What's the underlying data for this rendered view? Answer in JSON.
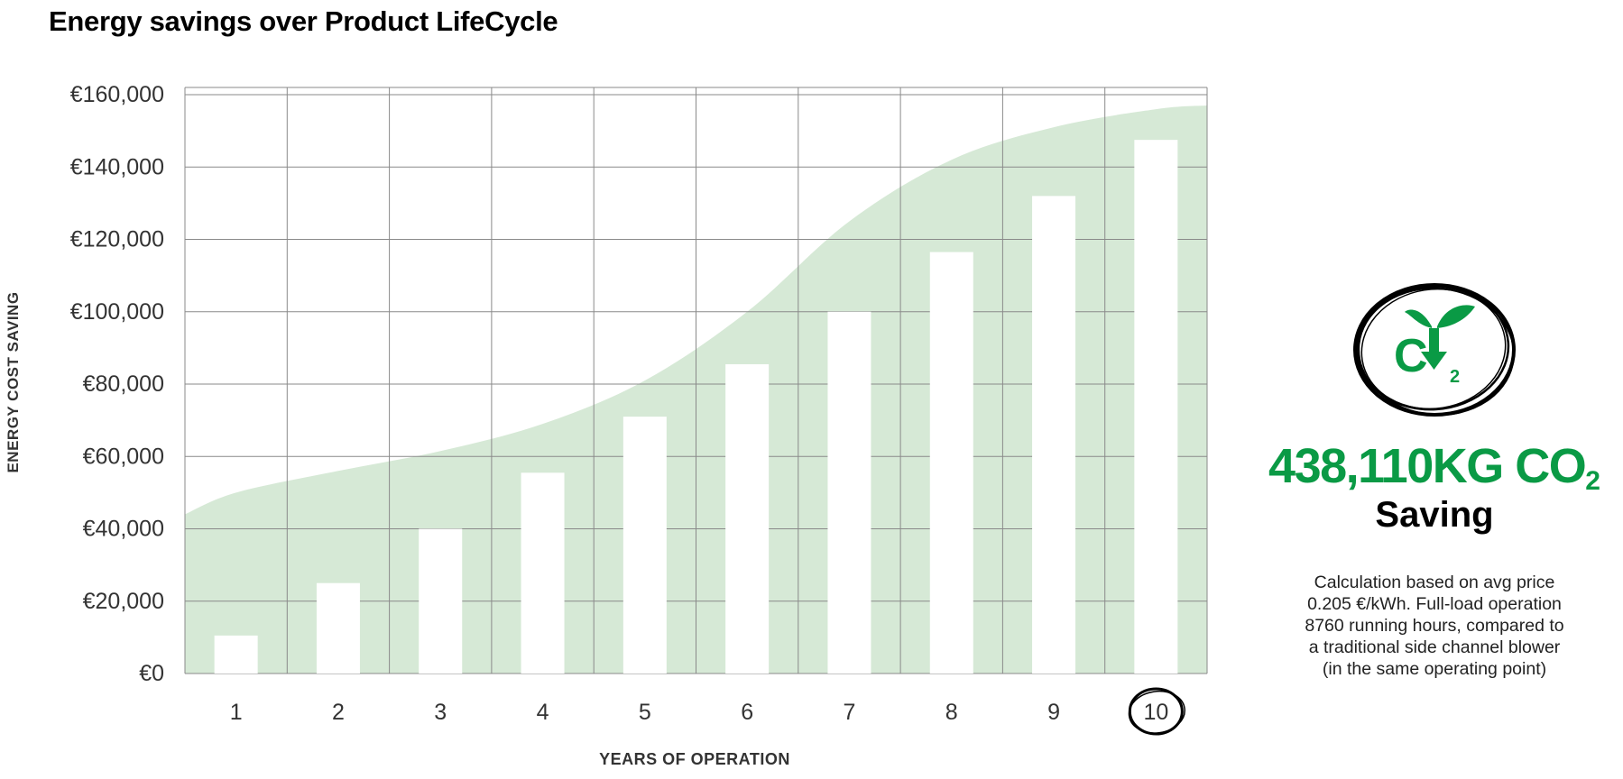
{
  "header": {
    "title": "Energy savings over Product LifeCycle"
  },
  "chart_data": {
    "type": "bar",
    "title": "Energy savings over Product LifeCycle",
    "xlabel": "YEARS OF OPERATION",
    "ylabel": "ENERGY COST SAVING",
    "categories": [
      "1",
      "2",
      "3",
      "4",
      "5",
      "6",
      "7",
      "8",
      "9",
      "10"
    ],
    "values": [
      10500,
      25000,
      40000,
      55500,
      71000,
      85500,
      100000,
      116500,
      132000,
      147500
    ],
    "yticks": [
      "€0",
      "€20,000",
      "€40,000",
      "€60,000",
      "€80,000",
      "€100,000",
      "€120,000",
      "€140,000",
      "€160,000"
    ],
    "ytick_values": [
      0,
      20000,
      40000,
      60000,
      80000,
      100000,
      120000,
      140000,
      160000
    ],
    "ylim": [
      0,
      162000
    ],
    "grid": true,
    "highlighted_category": "10",
    "background_area": {
      "x": [
        0.5,
        1,
        2,
        3,
        4,
        5,
        6,
        7,
        8,
        9,
        10,
        10.5
      ],
      "values": [
        44000,
        50000,
        56000,
        61500,
        69000,
        81000,
        100000,
        125000,
        142000,
        151000,
        156000,
        157000
      ]
    },
    "colors": {
      "area": "#d6e9d6",
      "bars": "#ffffff",
      "grid": "#8a8a8a",
      "axis_text": "#333333"
    }
  },
  "side_panel": {
    "co2_value": "438,110KG CO",
    "co2_subscript": "2",
    "saving_label": "Saving",
    "note_lines": [
      "Calculation based on avg price",
      "0.205 €/kWh. Full-load operation",
      "8760 running hours, compared to",
      "a traditional side channel blower",
      "(in the same operating point)"
    ],
    "icon": "co2-reduction-icon",
    "accent_color": "#0a9a45"
  }
}
